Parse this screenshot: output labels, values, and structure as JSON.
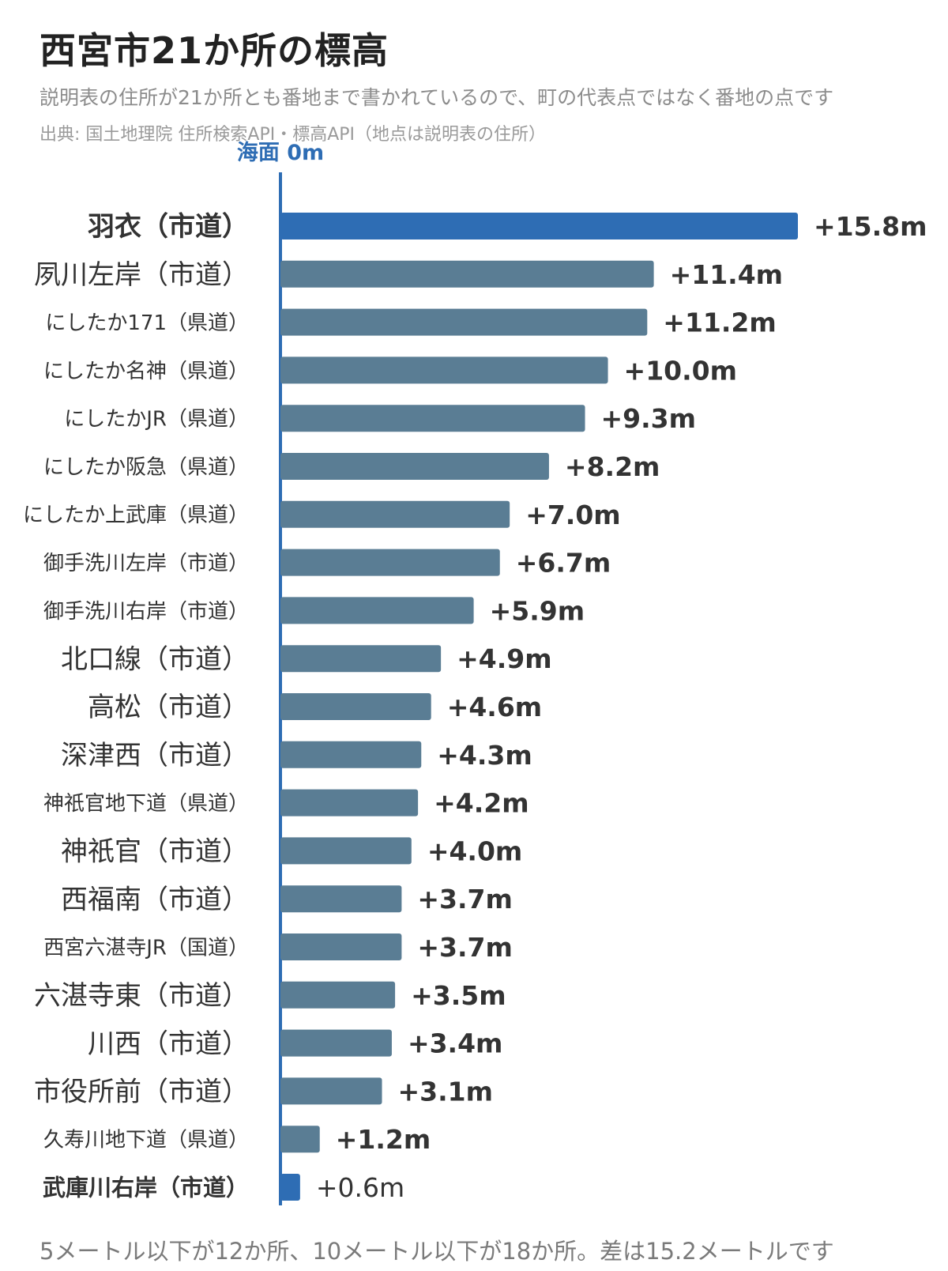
{
  "title": "西宮市21か所の標高",
  "subtitle": "説明表の住所が21か所とも番地まで書かれているので、町の代表点ではなく番地の点です",
  "source": "出典: 国土地理院 住所検索API・標高API（地点は説明表の住所）",
  "footnote": "5メートル以下が12か所、10メートル以下が18か所。差は15.2メートルです",
  "colors": {
    "highlight": "#2e6db4",
    "bar": "#5a7d94",
    "axis": "#2e6db4",
    "label": "#333333"
  },
  "chart_data": {
    "type": "bar",
    "orientation": "horizontal",
    "baseline_label": "海面 0m",
    "categories": [
      "羽衣（市道）",
      "夙川左岸（市道）",
      "にしたか171（県道）",
      "にしたか名神（県道）",
      "にしたかJR（県道）",
      "にしたか阪急（県道）",
      "にしたか上武庫（県道）",
      "御手洗川左岸（市道）",
      "御手洗川右岸（市道）",
      "北口線（市道）",
      "高松（市道）",
      "深津西（市道）",
      "神祇官地下道（県道）",
      "神祇官（市道）",
      "西福南（市道）",
      "西宮六湛寺JR（国道）",
      "六湛寺東（市道）",
      "川西（市道）",
      "市役所前（市道）",
      "久寿川地下道（県道）",
      "武庫川右岸（市道）"
    ],
    "values": [
      15.8,
      11.4,
      11.2,
      10.0,
      9.3,
      8.2,
      7.0,
      6.7,
      5.9,
      4.9,
      4.6,
      4.3,
      4.2,
      4.0,
      3.7,
      3.7,
      3.5,
      3.4,
      3.1,
      1.2,
      0.6
    ],
    "value_labels": [
      "+15.8m",
      "+11.4m",
      "+11.2m",
      "+10.0m",
      "+9.3m",
      "+8.2m",
      "+7.0m",
      "+6.7m",
      "+5.9m",
      "+4.9m",
      "+4.6m",
      "+4.3m",
      "+4.2m",
      "+4.0m",
      "+3.7m",
      "+3.7m",
      "+3.5m",
      "+3.4m",
      "+3.1m",
      "+1.2m",
      "+0.6m"
    ],
    "highlighted": [
      "羽衣（市道）",
      "武庫川右岸（市道）"
    ],
    "xlim": [
      0,
      15.8
    ],
    "grid": false,
    "legend": "none"
  }
}
